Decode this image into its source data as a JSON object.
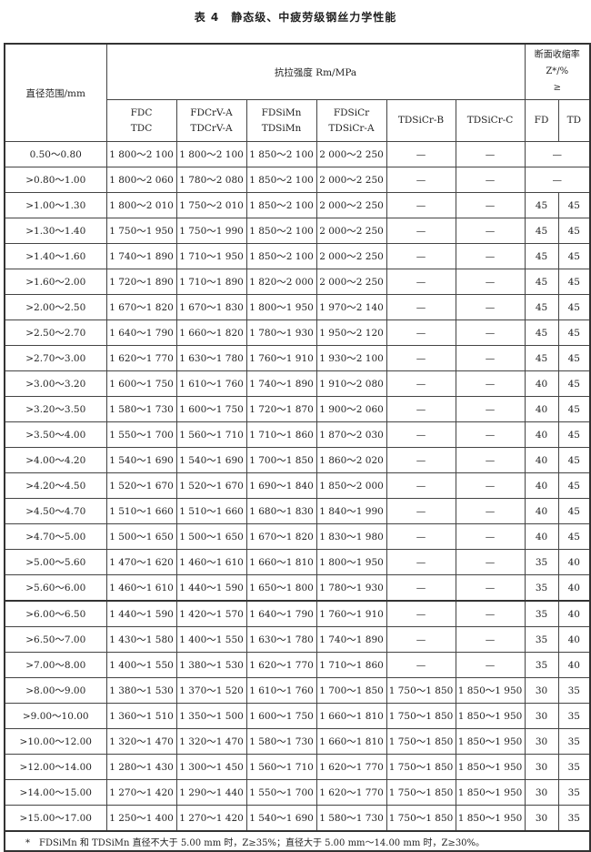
{
  "title": "表 4　静态级、中疲劳级钢丝力学性能",
  "header": {
    "diameter": "直径范围/mm",
    "tensile": "抗拉强度 Rm/MPa",
    "reduction": [
      "断面收缩率",
      "Z*/%",
      "≥"
    ],
    "grades": [
      [
        "FDC",
        "TDC"
      ],
      [
        "FDCrV-A",
        "TDCrV-A"
      ],
      [
        "FDSiMn",
        "TDSiMn"
      ],
      [
        "FDSiCr",
        "TDSiCr-A"
      ],
      [
        "TDSiCr-B"
      ],
      [
        "TDSiCr-C"
      ]
    ],
    "fd": "FD",
    "td": "TD"
  },
  "rows": [
    [
      "0.50～0.80",
      "1 800～2 100",
      "1 800～2 100",
      "1 850～2 100",
      "2 000～2 250",
      "—",
      "—",
      "—"
    ],
    [
      ">0.80～1.00",
      "1 800～2 060",
      "1 780～2 080",
      "1 850～2 100",
      "2 000～2 250",
      "—",
      "—",
      "—"
    ],
    [
      ">1.00～1.30",
      "1 800～2 010",
      "1 750～2 010",
      "1 850～2 100",
      "2 000～2 250",
      "—",
      "—",
      "45",
      "45"
    ],
    [
      ">1.30～1.40",
      "1 750～1 950",
      "1 750～1 990",
      "1 850～2 100",
      "2 000～2 250",
      "—",
      "—",
      "45",
      "45"
    ],
    [
      ">1.40～1.60",
      "1 740～1 890",
      "1 710～1 950",
      "1 850～2 100",
      "2 000～2 250",
      "—",
      "—",
      "45",
      "45"
    ],
    [
      ">1.60～2.00",
      "1 720～1 890",
      "1 710～1 890",
      "1 820～2 000",
      "2 000～2 250",
      "—",
      "—",
      "45",
      "45"
    ],
    [
      ">2.00～2.50",
      "1 670～1 820",
      "1 670～1 830",
      "1 800～1 950",
      "1 970～2 140",
      "—",
      "—",
      "45",
      "45"
    ],
    [
      ">2.50～2.70",
      "1 640～1 790",
      "1 660～1 820",
      "1 780～1 930",
      "1 950～2 120",
      "—",
      "—",
      "45",
      "45"
    ],
    [
      ">2.70～3.00",
      "1 620～1 770",
      "1 630～1 780",
      "1 760～1 910",
      "1 930～2 100",
      "—",
      "—",
      "45",
      "45"
    ],
    [
      ">3.00～3.20",
      "1 600～1 750",
      "1 610～1 760",
      "1 740～1 890",
      "1 910～2 080",
      "—",
      "—",
      "40",
      "45"
    ],
    [
      ">3.20～3.50",
      "1 580～1 730",
      "1 600～1 750",
      "1 720～1 870",
      "1 900～2 060",
      "—",
      "—",
      "40",
      "45"
    ],
    [
      ">3.50～4.00",
      "1 550～1 700",
      "1 560～1 710",
      "1 710～1 860",
      "1 870～2 030",
      "—",
      "—",
      "40",
      "45"
    ],
    [
      ">4.00～4.20",
      "1 540～1 690",
      "1 540～1 690",
      "1 700～1 850",
      "1 860～2 020",
      "—",
      "—",
      "40",
      "45"
    ],
    [
      ">4.20～4.50",
      "1 520～1 670",
      "1 520～1 670",
      "1 690～1 840",
      "1 850～2 000",
      "—",
      "—",
      "40",
      "45"
    ],
    [
      ">4.50～4.70",
      "1 510～1 660",
      "1 510～1 660",
      "1 680～1 830",
      "1 840～1 990",
      "—",
      "—",
      "40",
      "45"
    ],
    [
      ">4.70～5.00",
      "1 500～1 650",
      "1 500～1 650",
      "1 670～1 820",
      "1 830～1 980",
      "—",
      "—",
      "40",
      "45"
    ],
    [
      ">5.00～5.60",
      "1 470～1 620",
      "1 460～1 610",
      "1 660～1 810",
      "1 800～1 950",
      "—",
      "—",
      "35",
      "40"
    ],
    [
      ">5.60～6.00",
      "1 460～1 610",
      "1 440～1 590",
      "1 650～1 800",
      "1 780～1 930",
      "—",
      "—",
      "35",
      "40"
    ],
    [
      ">6.00～6.50",
      "1 440～1 590",
      "1 420～1 570",
      "1 640～1 790",
      "1 760～1 910",
      "—",
      "—",
      "35",
      "40"
    ],
    [
      ">6.50～7.00",
      "1 430～1 580",
      "1 400～1 550",
      "1 630～1 780",
      "1 740～1 890",
      "—",
      "—",
      "35",
      "40"
    ],
    [
      ">7.00～8.00",
      "1 400～1 550",
      "1 380～1 530",
      "1 620～1 770",
      "1 710～1 860",
      "—",
      "—",
      "35",
      "40"
    ],
    [
      ">8.00～9.00",
      "1 380～1 530",
      "1 370～1 520",
      "1 610～1 760",
      "1 700～1 850",
      "1 750～1 850",
      "1 850～1 950",
      "30",
      "35"
    ],
    [
      ">9.00～10.00",
      "1 360～1 510",
      "1 350～1 500",
      "1 600～1 750",
      "1 660～1 810",
      "1 750～1 850",
      "1 850～1 950",
      "30",
      "35"
    ],
    [
      ">10.00～12.00",
      "1 320～1 470",
      "1 320～1 470",
      "1 580～1 730",
      "1 660～1 810",
      "1 750～1 850",
      "1 850～1 950",
      "30",
      "35"
    ],
    [
      ">12.00～14.00",
      "1 280～1 430",
      "1 300～1 450",
      "1 560～1 710",
      "1 620～1 770",
      "1 750～1 850",
      "1 850～1 950",
      "30",
      "35"
    ],
    [
      ">14.00～15.00",
      "1 270～1 420",
      "1 290～1 440",
      "1 550～1 700",
      "1 620～1 770",
      "1 750～1 850",
      "1 850～1 950",
      "30",
      "35"
    ],
    [
      ">15.00～17.00",
      "1 250～1 400",
      "1 270～1 420",
      "1 540～1 690",
      "1 580～1 730",
      "1 750～1 850",
      "1 850～1 950",
      "30",
      "35"
    ]
  ],
  "footnote": "*　FDSiMn 和 TDSiMn 直径不大于 5.00 mm 时，Z≥35%；直径大于 5.00 mm～14.00 mm 时，Z≥30%。"
}
